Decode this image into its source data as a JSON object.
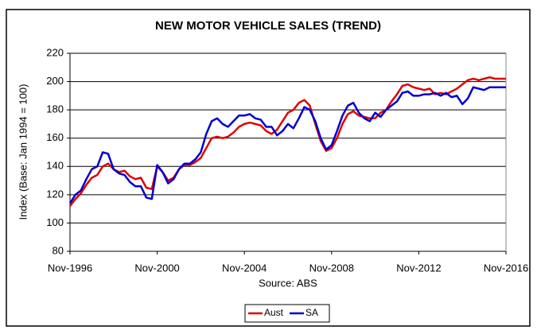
{
  "chart_data": {
    "type": "line",
    "title": "NEW MOTOR VEHICLE SALES (TREND)",
    "y_label": "Index (Base: Jan 1994 = 100)",
    "source": "Source: ABS",
    "categories": [
      "Nov-1996",
      null,
      null,
      null,
      null,
      null,
      null,
      null,
      null,
      null,
      null,
      null,
      null,
      null,
      null,
      null,
      "Nov-2000",
      null,
      null,
      null,
      null,
      null,
      null,
      null,
      null,
      null,
      null,
      null,
      null,
      null,
      null,
      null,
      "Nov-2004",
      null,
      null,
      null,
      null,
      null,
      null,
      null,
      null,
      null,
      null,
      null,
      null,
      null,
      null,
      null,
      "Nov-2008",
      null,
      null,
      null,
      null,
      null,
      null,
      null,
      null,
      null,
      null,
      null,
      null,
      null,
      null,
      null,
      "Nov-2012",
      null,
      null,
      null,
      null,
      null,
      null,
      null,
      null,
      null,
      null,
      null,
      null,
      null,
      null,
      null,
      "Nov-2016"
    ],
    "series": [
      {
        "name": "Aust",
        "color": "#e00000",
        "values": [
          112,
          117,
          121,
          127,
          132,
          134,
          140,
          142,
          138,
          136,
          137,
          133,
          131,
          132,
          125,
          124,
          140,
          136,
          130,
          132,
          138,
          141,
          141,
          143,
          146,
          153,
          160,
          161,
          160,
          161,
          164,
          168,
          170,
          171,
          170,
          169,
          165,
          163,
          166,
          172,
          178,
          180,
          185,
          187,
          183,
          170,
          158,
          151,
          153,
          160,
          170,
          177,
          179,
          176,
          175,
          174,
          174,
          178,
          180,
          186,
          191,
          197,
          198,
          196,
          195,
          194,
          195,
          191,
          192,
          191,
          193,
          195,
          198,
          201,
          202,
          201,
          202,
          203,
          202,
          202,
          202
        ]
      },
      {
        "name": "SA",
        "color": "#0000d0",
        "values": [
          114,
          120,
          123,
          131,
          138,
          140,
          150,
          149,
          138,
          135,
          134,
          129,
          126,
          126,
          118,
          117,
          141,
          136,
          128,
          131,
          138,
          142,
          142,
          145,
          150,
          163,
          172,
          174,
          170,
          168,
          172,
          176,
          176,
          177,
          174,
          173,
          168,
          168,
          162,
          165,
          170,
          167,
          174,
          182,
          180,
          172,
          160,
          152,
          155,
          165,
          176,
          183,
          185,
          178,
          174,
          172,
          178,
          175,
          180,
          183,
          186,
          192,
          193,
          190,
          190,
          191,
          191,
          192,
          190,
          192,
          189,
          190,
          184,
          188,
          196,
          195,
          194,
          196,
          196,
          196,
          196
        ]
      }
    ],
    "ylim": [
      80,
      220
    ],
    "yticks": [
      80,
      100,
      120,
      140,
      160,
      180,
      200,
      220
    ],
    "grid": true,
    "legend": "bottom"
  }
}
